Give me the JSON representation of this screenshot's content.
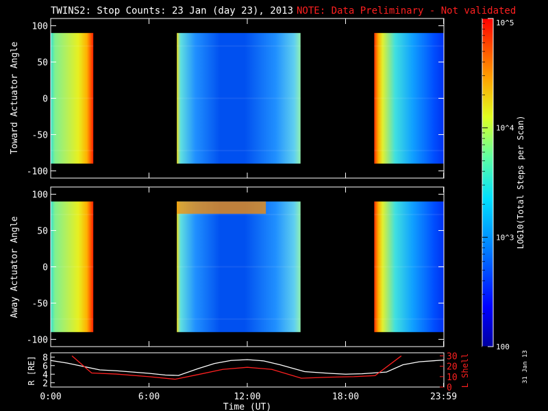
{
  "header": {
    "title": "TWINS2: Stop Counts: 23 Jan (day  23), 2013",
    "note": "NOTE: Data Preliminary - Not validated"
  },
  "stamp": "31 Jan 13",
  "colors": {
    "background": "#000000",
    "axes": "#ffffff",
    "note": "#ff2020",
    "r_line": "#ffffff",
    "lshell_line": "#ff2020"
  },
  "colorbar": {
    "label": "LOG10(Total Steps per Scan)",
    "scale": "log",
    "range": [
      100,
      100000
    ],
    "tick_labels": [
      "100",
      "10^3",
      "10^4",
      "10^5"
    ]
  },
  "chart_data": [
    {
      "type": "heatmap",
      "name": "toward-panel",
      "ylabel": "Toward Actuator Angle",
      "ylim": [
        -110,
        110
      ],
      "yticks": [
        100,
        50,
        0,
        -50,
        -100
      ],
      "xlim": [
        0,
        24
      ],
      "data_range_y": [
        -90,
        90
      ],
      "intervals": [
        {
          "start_hr": 0.0,
          "end_hr": 2.6,
          "profile": "rising"
        },
        {
          "start_hr": 7.7,
          "end_hr": 15.25,
          "profile": "bowl"
        },
        {
          "start_hr": 19.75,
          "end_hr": 24.0,
          "profile": "falling"
        }
      ]
    },
    {
      "type": "heatmap",
      "name": "away-panel",
      "ylabel": "Away Actuator Angle",
      "ylim": [
        -110,
        110
      ],
      "yticks": [
        100,
        50,
        0,
        -50,
        -100
      ],
      "xlim": [
        0,
        24
      ],
      "data_range_y": [
        -90,
        90
      ],
      "intervals": [
        {
          "start_hr": 0.0,
          "end_hr": 2.6,
          "profile": "rising"
        },
        {
          "start_hr": 7.7,
          "end_hr": 15.25,
          "profile": "bowl"
        },
        {
          "start_hr": 19.75,
          "end_hr": 24.0,
          "profile": "falling"
        }
      ]
    },
    {
      "type": "line",
      "name": "orbit-panel",
      "ylabel_left": "R [RE]",
      "ylabel_right": "L Shell",
      "ylim_left": [
        1,
        9
      ],
      "yticks_left": [
        8,
        6,
        4,
        2
      ],
      "ylim_right": [
        0,
        33
      ],
      "yticks_right": [
        30,
        20,
        10,
        0
      ],
      "xlabel": "Time (UT)",
      "xlim": [
        0,
        24
      ],
      "xtick_labels": [
        "0:00",
        "6:00",
        "12:00",
        "18:00",
        "23:59"
      ],
      "xtick_values": [
        0,
        6,
        12,
        18,
        23.98
      ],
      "series": [
        {
          "axis": "left",
          "x": [
            0,
            1,
            2,
            3,
            4,
            5,
            6,
            7,
            7.8,
            9,
            10,
            11,
            12,
            13,
            14,
            15.5,
            17,
            18,
            19,
            20.5,
            21.5,
            22.5,
            24
          ],
          "values": [
            7.2,
            6.6,
            5.8,
            5.0,
            4.8,
            4.5,
            4.2,
            3.8,
            3.7,
            5.3,
            6.5,
            7.2,
            7.4,
            7.1,
            6.2,
            4.6,
            4.2,
            4.0,
            4.1,
            4.5,
            6.2,
            6.9,
            7.3
          ]
        },
        {
          "axis": "right",
          "x": [
            1.3,
            2.5,
            4,
            6,
            7.6,
            9,
            10.5,
            12,
            13.5,
            15.3,
            17,
            18.5,
            19.8,
            21.4
          ],
          "values": [
            30,
            13.5,
            12.5,
            10,
            7.5,
            12,
            17,
            19,
            17,
            8.5,
            9.5,
            10,
            11,
            30
          ]
        }
      ]
    }
  ]
}
